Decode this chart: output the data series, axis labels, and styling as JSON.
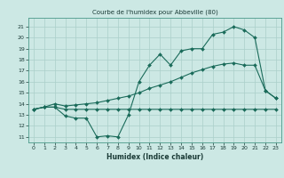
{
  "title": "Courbe de l'humidex pour Abbeville (80)",
  "xlabel": "Humidex (Indice chaleur)",
  "bg_color": "#cce8e4",
  "grid_color": "#aacfca",
  "line_color": "#1a6b5a",
  "xlim": [
    -0.5,
    23.5
  ],
  "ylim": [
    10.5,
    21.8
  ],
  "yticks": [
    11,
    12,
    13,
    14,
    15,
    16,
    17,
    18,
    19,
    20,
    21
  ],
  "xticks": [
    0,
    1,
    2,
    3,
    4,
    5,
    6,
    7,
    8,
    9,
    10,
    11,
    12,
    13,
    14,
    15,
    16,
    17,
    18,
    19,
    20,
    21,
    22,
    23
  ],
  "line1_x": [
    0,
    1,
    2,
    3,
    4,
    5,
    6,
    7,
    8,
    9,
    10,
    11,
    12,
    13,
    14,
    15,
    16,
    17,
    18,
    19,
    20,
    21,
    22,
    23
  ],
  "line1_y": [
    13.5,
    13.7,
    13.7,
    12.9,
    12.7,
    12.7,
    11.0,
    11.1,
    11.0,
    13.0,
    16.0,
    17.5,
    18.5,
    17.5,
    18.8,
    19.0,
    19.0,
    20.3,
    20.5,
    21.0,
    20.7,
    20.0,
    15.2,
    14.5
  ],
  "line2_x": [
    0,
    1,
    2,
    3,
    4,
    5,
    6,
    7,
    8,
    9,
    10,
    11,
    12,
    13,
    14,
    15,
    16,
    17,
    18,
    19,
    20,
    21,
    22,
    23
  ],
  "line2_y": [
    13.5,
    13.7,
    13.7,
    13.5,
    13.5,
    13.5,
    13.5,
    13.5,
    13.5,
    13.5,
    13.5,
    13.5,
    13.5,
    13.5,
    13.5,
    13.5,
    13.5,
    13.5,
    13.5,
    13.5,
    13.5,
    13.5,
    13.5,
    13.5
  ],
  "line3_x": [
    0,
    1,
    2,
    3,
    4,
    5,
    6,
    7,
    8,
    9,
    10,
    11,
    12,
    13,
    14,
    15,
    16,
    17,
    18,
    19,
    20,
    21,
    22,
    23
  ],
  "line3_y": [
    13.5,
    13.7,
    14.0,
    13.8,
    13.9,
    14.0,
    14.1,
    14.3,
    14.5,
    14.7,
    15.0,
    15.4,
    15.7,
    16.0,
    16.4,
    16.8,
    17.1,
    17.4,
    17.6,
    17.7,
    17.5,
    17.5,
    15.2,
    14.5
  ]
}
